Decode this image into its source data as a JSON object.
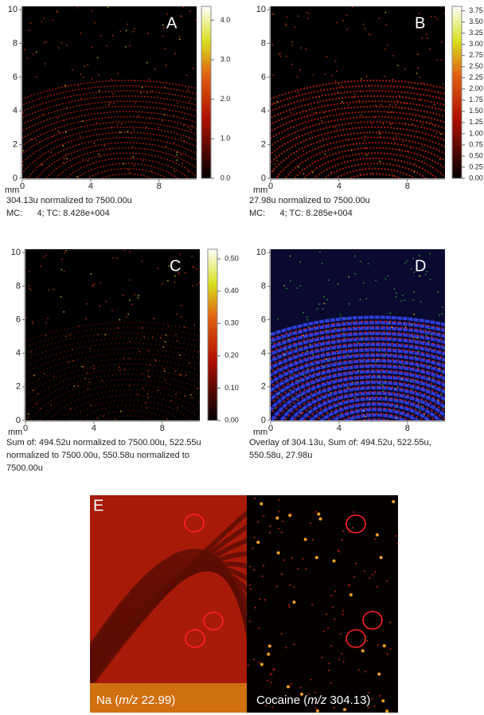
{
  "panels": [
    {
      "label": "A",
      "xlim": [
        0,
        10.2
      ],
      "ylim": [
        0,
        10.2
      ],
      "xticks": [
        0,
        4,
        8
      ],
      "yticks": [
        0,
        2,
        4,
        6,
        8,
        10
      ],
      "unit": "mm",
      "colorbar": {
        "range": [
          0,
          4.35
        ],
        "ticks": [
          {
            "value": 0,
            "label": "0.0"
          },
          {
            "value": 1,
            "label": "1.0"
          },
          {
            "value": 2,
            "label": "2.0"
          },
          {
            "value": 3,
            "label": "3.0"
          },
          {
            "value": 4,
            "label": "4.0"
          }
        ]
      },
      "caption": [
        "304.13u normalized to 7500.00u",
        "MC:      4; TC: 8.428e+004"
      ]
    },
    {
      "label": "B",
      "xlim": [
        0,
        10.2
      ],
      "ylim": [
        0,
        10.2
      ],
      "xticks": [
        0,
        4,
        8
      ],
      "yticks": [
        0,
        2,
        4,
        6,
        8,
        10
      ],
      "unit": "mm",
      "colorbar": {
        "range": [
          0,
          3.85
        ],
        "ticks": [
          {
            "value": 0,
            "label": "0.00"
          },
          {
            "value": 0.25,
            "label": "0.25"
          },
          {
            "value": 0.5,
            "label": "0.50"
          },
          {
            "value": 0.75,
            "label": "0.75"
          },
          {
            "value": 1,
            "label": "1.00"
          },
          {
            "value": 1.25,
            "label": "1.25"
          },
          {
            "value": 1.5,
            "label": "1.50"
          },
          {
            "value": 1.75,
            "label": "1.75"
          },
          {
            "value": 2,
            "label": "2.00"
          },
          {
            "value": 2.25,
            "label": "2.25"
          },
          {
            "value": 2.5,
            "label": "2.50"
          },
          {
            "value": 2.75,
            "label": "2.75"
          },
          {
            "value": 3,
            "label": "3.00"
          },
          {
            "value": 3.25,
            "label": "3.25"
          },
          {
            "value": 3.5,
            "label": "3.50"
          },
          {
            "value": 3.75,
            "label": "3.75"
          }
        ]
      },
      "caption": [
        "27.98u normalized to 7500.00u",
        "MC:      4; TC: 8.285e+004"
      ]
    },
    {
      "label": "C",
      "xlim": [
        0,
        10.2
      ],
      "ylim": [
        0,
        10.2
      ],
      "xticks": [
        0,
        4,
        8
      ],
      "yticks": [
        0,
        2,
        4,
        6,
        8,
        10
      ],
      "unit": "mm",
      "colorbar": {
        "range": [
          0,
          0.53
        ],
        "ticks": [
          {
            "value": 0,
            "label": "0.00"
          },
          {
            "value": 0.1,
            "label": "0.10"
          },
          {
            "value": 0.2,
            "label": "0.20"
          },
          {
            "value": 0.3,
            "label": "0.30"
          },
          {
            "value": 0.4,
            "label": "0.40"
          },
          {
            "value": 0.5,
            "label": "0.50"
          }
        ]
      },
      "caption": [
        "Sum of: 494.52u normalized to 7500.00u, 522.55u",
        "normalized to 7500.00u, 550.58u normalized to",
        "7500.00u"
      ]
    },
    {
      "label": "D",
      "xlim": [
        0,
        10.2
      ],
      "ylim": [
        0,
        10.2
      ],
      "xticks": [
        0,
        4,
        8
      ],
      "yticks": [
        0,
        2,
        4,
        6,
        8,
        10
      ],
      "unit": "mm",
      "caption": [
        "Overlay of 304.13u, Sum of: 494.52u, 522.55u,",
        "550.58u, 27.98u"
      ]
    }
  ],
  "panel_e": {
    "label": "E",
    "left_label": [
      "Na (",
      "m/z",
      " 22.99)"
    ],
    "right_label": [
      "Cocaine (",
      "m/z",
      " 304.13)"
    ]
  }
}
